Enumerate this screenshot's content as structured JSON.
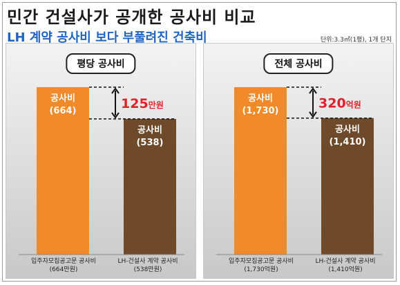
{
  "header": {
    "title": "민간 건설사가 공개한 공사비 비교",
    "subtitle": "LH 계약 공사비 보다 부풀려진 건축비",
    "unit_note": "단위:3.3㎡(1평), 1개 단지"
  },
  "colors": {
    "orange": "#f18a2b",
    "brown": "#6e4a2a",
    "red": "#e0212b"
  },
  "chart_data": [
    {
      "type": "bar",
      "title": "평당 공사비",
      "categories": [
        "입주자모집공고문 공사비\n(664만원)",
        "LH-건설사 계약 공사비\n(538만원)"
      ],
      "values": [
        664,
        538
      ],
      "bar_labels": [
        [
          "공사비",
          "(664)"
        ],
        [
          "공사비",
          "(538)"
        ]
      ],
      "difference": {
        "value": "125",
        "unit": "만원"
      },
      "ylim": [
        0,
        664
      ]
    },
    {
      "type": "bar",
      "title": "전체 공사비",
      "categories": [
        "입주자모집공고문 공사비\n(1,730억원)",
        "LH-건설사 계약 공사비\n(1,410억원)"
      ],
      "values": [
        1730,
        1410
      ],
      "bar_labels": [
        [
          "공사비",
          "(1,730)"
        ],
        [
          "공사비",
          "(1,410)"
        ]
      ],
      "difference": {
        "value": "320",
        "unit": "억원"
      },
      "ylim": [
        0,
        1730
      ]
    }
  ]
}
